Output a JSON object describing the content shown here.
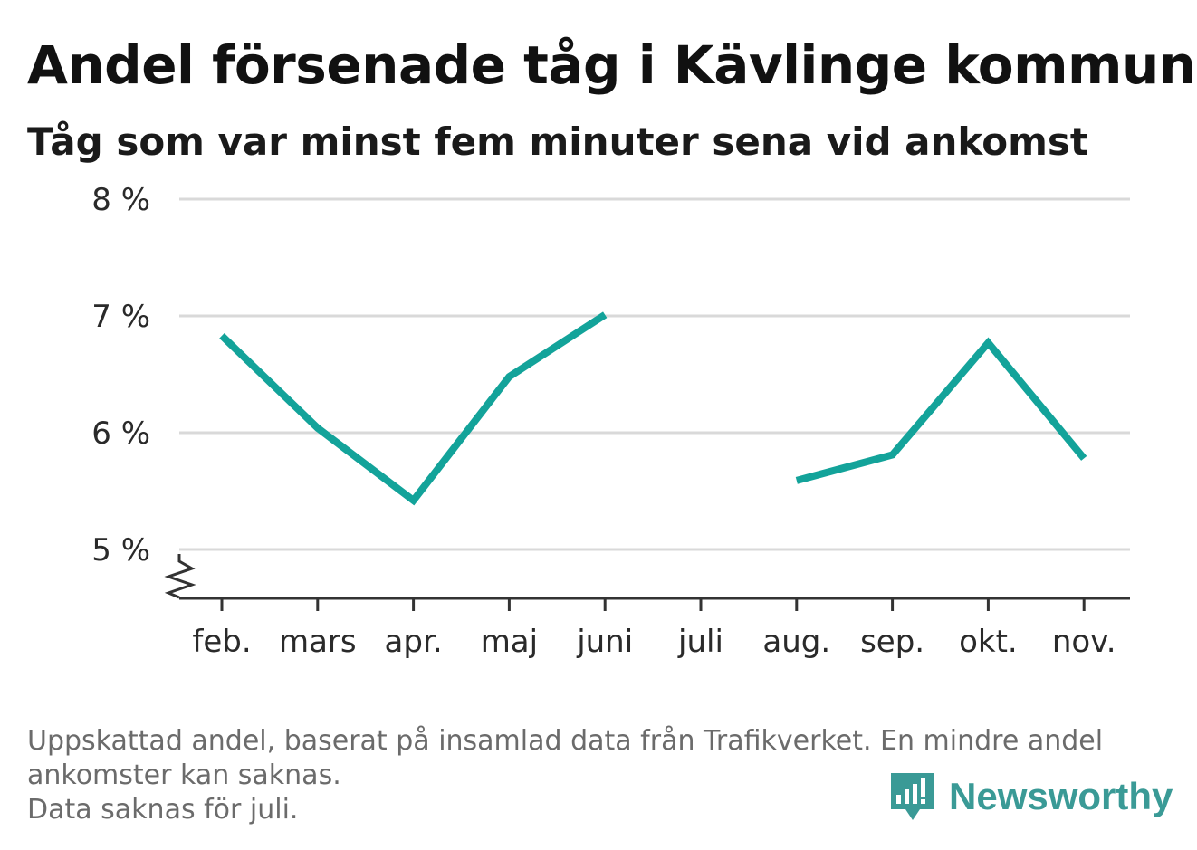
{
  "title": "Andel försenade tåg i Kävlinge kommun",
  "subtitle": "Tåg som var minst fem minuter sena vid ankomst",
  "notes": [
    "Uppskattad andel, baserat på insamlad data från Trafikverket. En mindre andel ankomster kan saknas.",
    "Data saknas för juli."
  ],
  "logo": {
    "text": "Newsworthy",
    "icon": "newsworthy-logo-icon"
  },
  "colors": {
    "line": "#13a39a",
    "grid": "#d9d9d9",
    "axis": "#333333",
    "logo": "#3a9a96"
  },
  "chart_data": {
    "type": "line",
    "categories": [
      "feb.",
      "mars",
      "apr.",
      "maj",
      "juni",
      "juli",
      "aug.",
      "sep.",
      "okt.",
      "nov."
    ],
    "series": [
      {
        "values": [
          6.83,
          6.04,
          5.42,
          6.48,
          7.01,
          null,
          5.59,
          5.81,
          6.77,
          5.78
        ]
      }
    ],
    "yticks": [
      5,
      6,
      7,
      8
    ],
    "ytick_labels": [
      "5 %",
      "6 %",
      "7 %",
      "8 %"
    ],
    "ylim": [
      4.6,
      8
    ],
    "axis_break": true,
    "grid": true,
    "legend": "none"
  }
}
